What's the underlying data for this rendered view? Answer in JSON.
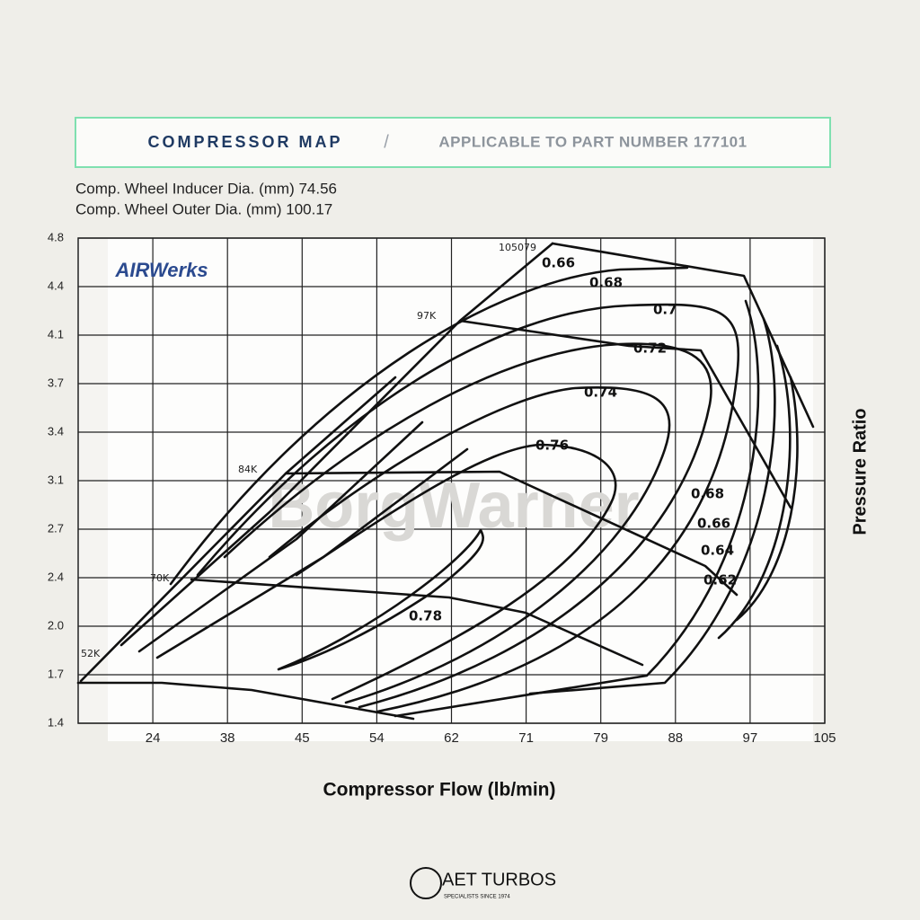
{
  "header": {
    "title": "COMPRESSOR MAP",
    "separator": "/",
    "subtitle": "APPLICABLE TO PART NUMBER 177101"
  },
  "specs": [
    "Comp. Wheel Inducer Dia. (mm) 74.56",
    "Comp. Wheel Outer Dia. (mm) 100.17"
  ],
  "branding": {
    "watermark": "BorgWarner",
    "logo": "AIRWerks",
    "company": "AET TURBOS",
    "tagline": "SPECIALISTS SINCE 1974"
  },
  "chart_data": {
    "type": "compressor-map",
    "x_label": "Compressor Flow (lb/min)",
    "y_label": "Pressure Ratio",
    "xticks": [
      24,
      38,
      45,
      54,
      62,
      71,
      79,
      88,
      97,
      105
    ],
    "yticks": [
      1.4,
      1.7,
      {
        "value": 2,
        "label": "2.0"
      },
      2.4,
      2.7,
      3.1,
      3.4,
      3.7,
      4.1,
      4.4,
      4.8
    ],
    "grid": true,
    "speed_lines": [
      "52K",
      "70K",
      "84K",
      "97K",
      "105079"
    ],
    "efficiency_labels": [
      0.66,
      0.68,
      0.7,
      0.72,
      0.74,
      0.76,
      0.78,
      0.68,
      0.66,
      0.64,
      0.62
    ]
  }
}
